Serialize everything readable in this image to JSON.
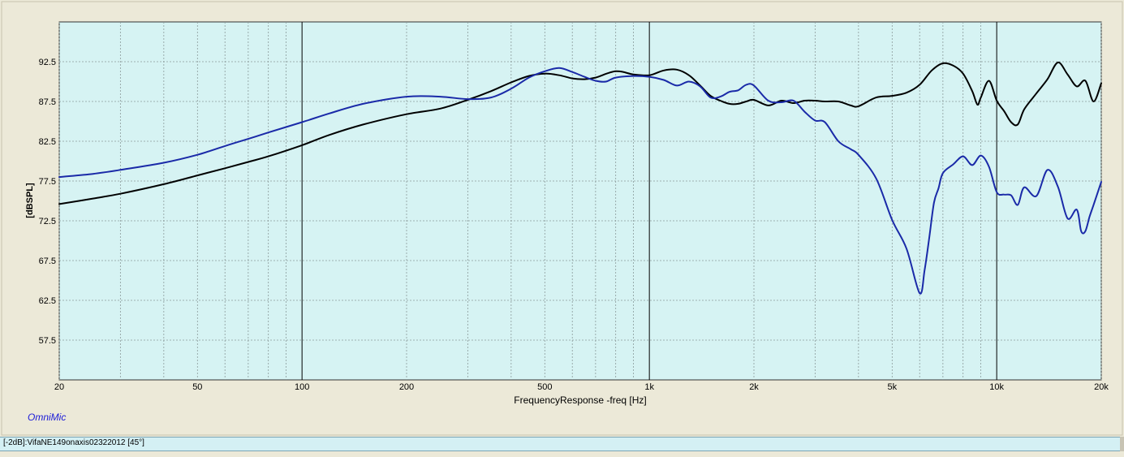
{
  "app": {
    "brand": "OmniMic"
  },
  "status": {
    "trace_label": "[-2dB]:VifaNE149onaxis02322012 [45°]"
  },
  "chart_data": {
    "type": "line",
    "title": "",
    "xlabel": "FrequencyResponse -freq [Hz]",
    "ylabel": "[dBSPL]",
    "x_scale": "log",
    "xlim": [
      20,
      20000
    ],
    "ylim": [
      52.5,
      97.5
    ],
    "x_ticks": [
      {
        "value": 20,
        "label": "20"
      },
      {
        "value": 50,
        "label": "50"
      },
      {
        "value": 100,
        "label": "100"
      },
      {
        "value": 200,
        "label": "200"
      },
      {
        "value": 500,
        "label": "500"
      },
      {
        "value": 1000,
        "label": "1k"
      },
      {
        "value": 2000,
        "label": "2k"
      },
      {
        "value": 5000,
        "label": "5k"
      },
      {
        "value": 10000,
        "label": "10k"
      },
      {
        "value": 20000,
        "label": "20k"
      }
    ],
    "y_ticks": [
      {
        "value": 92.5,
        "label": "92.5"
      },
      {
        "value": 87.5,
        "label": "87.5"
      },
      {
        "value": 82.5,
        "label": "82.5"
      },
      {
        "value": 77.5,
        "label": "77.5"
      },
      {
        "value": 72.5,
        "label": "72.5"
      },
      {
        "value": 67.5,
        "label": "67.5"
      },
      {
        "value": 62.5,
        "label": "62.5"
      },
      {
        "value": 57.5,
        "label": "57.5"
      }
    ],
    "grid": true,
    "background_color": "#d6f3f3",
    "series": [
      {
        "color": "#000000",
        "x": [
          20,
          25,
          30,
          40,
          50,
          60,
          70,
          80,
          100,
          120,
          150,
          200,
          250,
          300,
          350,
          400,
          450,
          500,
          550,
          600,
          650,
          700,
          800,
          900,
          1000,
          1100,
          1200,
          1300,
          1400,
          1500,
          1600,
          1700,
          1800,
          1900,
          2000,
          2200,
          2400,
          2600,
          2800,
          3000,
          3200,
          3500,
          3800,
          4000,
          4500,
          5000,
          5500,
          6000,
          6500,
          7000,
          7500,
          8000,
          8500,
          8800,
          9000,
          9500,
          10000,
          10500,
          11000,
          11500,
          12000,
          13000,
          14000,
          15000,
          16000,
          17000,
          18000,
          19000,
          20000
        ],
        "y": [
          74.6,
          75.3,
          75.9,
          77.1,
          78.2,
          79.1,
          79.9,
          80.6,
          82.0,
          83.3,
          84.6,
          85.9,
          86.6,
          87.7,
          88.8,
          89.9,
          90.7,
          91.0,
          90.8,
          90.4,
          90.3,
          90.5,
          91.3,
          90.9,
          90.8,
          91.4,
          91.5,
          90.8,
          89.5,
          88.2,
          87.6,
          87.2,
          87.2,
          87.5,
          87.7,
          87.0,
          87.6,
          87.3,
          87.6,
          87.6,
          87.5,
          87.5,
          87.0,
          86.9,
          88.0,
          88.2,
          88.6,
          89.6,
          91.4,
          92.3,
          92.0,
          91.0,
          88.8,
          87.1,
          88.0,
          90.1,
          87.6,
          86.3,
          84.9,
          84.6,
          86.5,
          88.5,
          90.3,
          92.4,
          90.9,
          89.4,
          90.1,
          87.5,
          89.8
        ]
      },
      {
        "color": "#1a2aa8",
        "x": [
          20,
          25,
          30,
          40,
          50,
          60,
          70,
          80,
          100,
          120,
          150,
          200,
          250,
          300,
          350,
          400,
          450,
          500,
          550,
          600,
          650,
          700,
          750,
          800,
          900,
          1000,
          1100,
          1200,
          1300,
          1400,
          1500,
          1600,
          1700,
          1800,
          1900,
          2000,
          2200,
          2400,
          2600,
          2800,
          3000,
          3200,
          3500,
          3800,
          4000,
          4500,
          5000,
          5500,
          6000,
          6200,
          6400,
          6600,
          6800,
          7000,
          7500,
          8000,
          8500,
          9000,
          9500,
          10000,
          10500,
          11000,
          11500,
          12000,
          13000,
          14000,
          15000,
          16000,
          17000,
          17500,
          18000,
          18500,
          19000,
          20000
        ],
        "y": [
          78.0,
          78.4,
          78.9,
          79.8,
          80.8,
          81.9,
          82.8,
          83.6,
          84.9,
          86.0,
          87.2,
          88.1,
          88.1,
          87.8,
          88.0,
          89.1,
          90.5,
          91.3,
          91.7,
          91.2,
          90.6,
          90.1,
          90.0,
          90.5,
          90.7,
          90.6,
          90.2,
          89.5,
          90.0,
          89.4,
          88.0,
          88.1,
          88.7,
          88.9,
          89.6,
          89.5,
          87.6,
          87.4,
          87.6,
          86.2,
          85.1,
          84.9,
          82.5,
          81.5,
          80.8,
          77.8,
          72.6,
          69.0,
          63.4,
          66.3,
          70.5,
          74.8,
          76.6,
          78.5,
          79.6,
          80.6,
          79.5,
          80.7,
          79.3,
          76.1,
          75.8,
          75.7,
          74.5,
          76.7,
          75.6,
          78.9,
          76.8,
          72.8,
          73.9,
          71.2,
          71.2,
          73.0,
          74.5,
          77.4
        ]
      }
    ]
  }
}
